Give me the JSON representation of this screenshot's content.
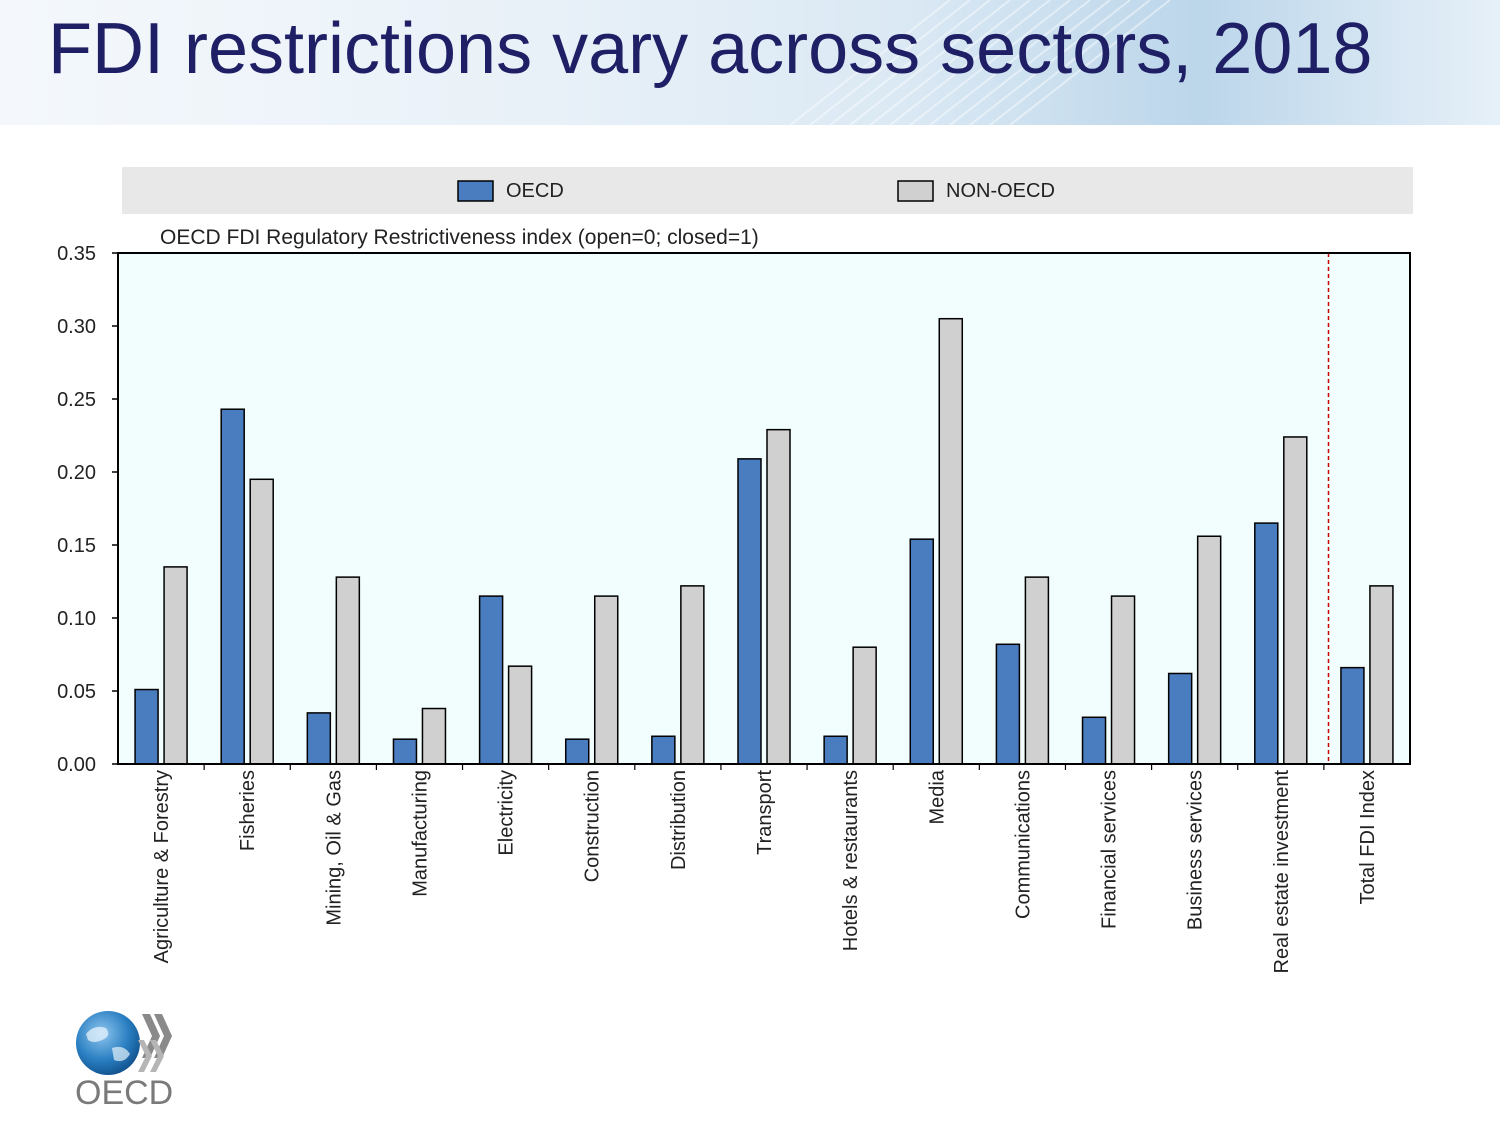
{
  "slide": {
    "title": "FDI restrictions vary across sectors, 2018",
    "logo_text": "OECD"
  },
  "colors": {
    "oecd_bar": "#4a7cc0",
    "non_oecd_bar": "#d0d0d0",
    "plot_background": "#f2fdfd",
    "legend_background": "#e8e8e8",
    "title_text": "#1f1f66",
    "separator_line": "#cc0000"
  },
  "chart_data": {
    "type": "bar",
    "title": "OECD FDI Regulatory Restrictiveness index (open=0; closed=1)",
    "categories": [
      "Agriculture & Forestry",
      "Fisheries",
      "Mining, Oil & Gas",
      "Manufacturing",
      "Electricity",
      "Construction",
      "Distribution",
      "Transport",
      "Hotels & restaurants",
      "Media",
      "Communications",
      "Financial services",
      "Business services",
      "Real estate investment",
      "Total FDI Index"
    ],
    "series": [
      {
        "name": "OECD",
        "color": "#4a7cc0",
        "values": [
          0.051,
          0.243,
          0.035,
          0.017,
          0.115,
          0.017,
          0.019,
          0.209,
          0.019,
          0.154,
          0.082,
          0.032,
          0.062,
          0.165,
          0.066
        ]
      },
      {
        "name": "NON-OECD",
        "color": "#d0d0d0",
        "values": [
          0.135,
          0.195,
          0.128,
          0.038,
          0.067,
          0.115,
          0.122,
          0.229,
          0.08,
          0.305,
          0.128,
          0.115,
          0.156,
          0.224,
          0.122
        ]
      }
    ],
    "ylim": [
      0,
      0.35
    ],
    "yticks": [
      "0.00",
      "0.05",
      "0.10",
      "0.15",
      "0.20",
      "0.25",
      "0.30",
      "0.35"
    ],
    "legend_position": "top",
    "grid": false,
    "reference_line": "dashed vertical separator before Total FDI Index"
  }
}
